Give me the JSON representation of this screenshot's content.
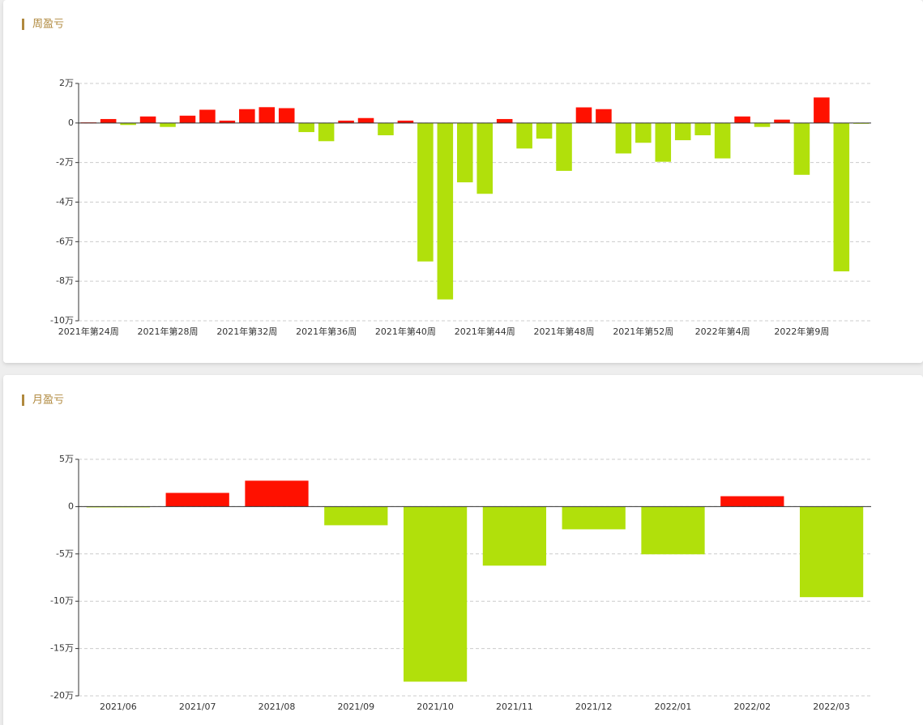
{
  "chart_data": [
    {
      "type": "bar",
      "section_title": "周盈亏",
      "categories": [
        "2021年第24周",
        null,
        null,
        null,
        "2021年第28周",
        null,
        null,
        null,
        "2021年第32周",
        null,
        null,
        null,
        "2021年第36周",
        null,
        null,
        null,
        "2021年第40周",
        null,
        null,
        null,
        "2021年第44周",
        null,
        null,
        null,
        "2021年第48周",
        null,
        null,
        null,
        "2021年第52周",
        null,
        null,
        null,
        "2022年第4周",
        null,
        null,
        null,
        "2022年第9周",
        null,
        null,
        null
      ],
      "values": [
        0.03,
        0.2,
        -0.1,
        0.33,
        -0.2,
        0.37,
        0.67,
        0.12,
        0.7,
        0.8,
        0.75,
        -0.46,
        -0.92,
        0.12,
        0.25,
        -0.62,
        0.12,
        -7.0,
        -8.92,
        -3.0,
        -3.58,
        0.2,
        -1.29,
        -0.79,
        -2.42,
        0.79,
        0.7,
        -1.54,
        -1.0,
        -1.96,
        -0.87,
        -0.62,
        -1.79,
        0.33,
        -0.2,
        0.17,
        -2.62,
        1.29,
        -7.5,
        -0.04
      ],
      "positive_color": "#ff1100",
      "negative_color": "#b1e00b",
      "ylim": [
        -10,
        2
      ],
      "yticks": [
        {
          "value": 2,
          "label": "2万"
        },
        0,
        {
          "value": -2,
          "label": "-2万"
        },
        {
          "value": -4,
          "label": "-4万"
        },
        {
          "value": -6,
          "label": "-6万"
        },
        {
          "value": -8,
          "label": "-8万"
        },
        {
          "value": -10,
          "label": "-10万"
        }
      ],
      "grid": true
    },
    {
      "type": "bar",
      "section_title": "月盈亏",
      "categories": [
        "2021/06",
        "2021/07",
        "2021/08",
        "2021/09",
        "2021/10",
        "2021/11",
        "2021/12",
        "2022/01",
        "2022/02",
        "2022/03"
      ],
      "values": [
        -0.05,
        1.45,
        2.74,
        -1.97,
        -18.5,
        -6.24,
        -2.4,
        -5.04,
        1.1,
        -9.57
      ],
      "positive_color": "#ff1100",
      "negative_color": "#b1e00b",
      "ylim": [
        -20,
        5
      ],
      "yticks": [
        {
          "value": 5,
          "label": "5万"
        },
        0,
        {
          "value": -5,
          "label": "-5万"
        },
        {
          "value": -10,
          "label": "-10万"
        },
        {
          "value": -15,
          "label": "-15万"
        },
        {
          "value": -20,
          "label": "-20万"
        }
      ],
      "grid": true
    }
  ]
}
